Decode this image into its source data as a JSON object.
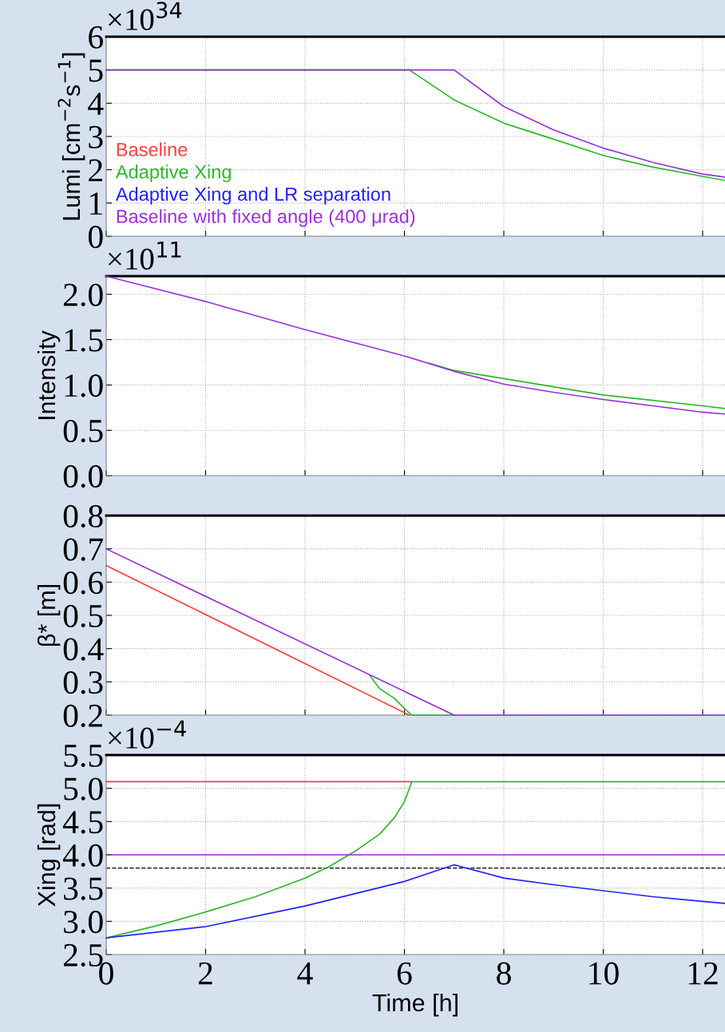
{
  "chart_data": [
    {
      "type": "line",
      "ylabel": "Lumi [cm$^{−2}$s$^{−1}$]",
      "annotations": [
        "×10$^{34}$"
      ],
      "xlim": [
        0,
        12.45
      ],
      "xticks": [
        0,
        2,
        4,
        6,
        8,
        10,
        12
      ],
      "ylim": [
        0,
        6
      ],
      "yticks": [
        0,
        1,
        2,
        3,
        4,
        5,
        6
      ],
      "tick_labels": "y",
      "grid": true,
      "legend": "lower left",
      "series": [
        {
          "name": "Baseline",
          "color": "#ff4040"
        },
        {
          "name": "Adaptive Xing",
          "color": "#2eb82e",
          "x": [
            0,
            6.1,
            7,
            8,
            9,
            10,
            11,
            12,
            12.45
          ],
          "values": [
            5,
            5,
            4.1,
            3.4,
            2.92,
            2.43,
            2.08,
            1.8,
            1.68
          ]
        },
        {
          "name": "Adaptive Xing and LR separation",
          "color": "#2020ff"
        },
        {
          "name": "Baseline with fixed angle (400 μrad)",
          "color": "#9b30d9",
          "x": [
            0,
            7,
            8,
            9,
            10,
            11,
            12,
            12.45
          ],
          "values": [
            5,
            5,
            3.9,
            3.2,
            2.65,
            2.22,
            1.87,
            1.78
          ]
        }
      ]
    },
    {
      "type": "line",
      "ylabel": "Intensity",
      "annotations": [
        "×10$^{11}$"
      ],
      "xlim": [
        0,
        12.45
      ],
      "xticks": [
        0,
        2,
        4,
        6,
        8,
        10,
        12
      ],
      "ylim": [
        0,
        2.2
      ],
      "yticks": [
        {
          "value": 0,
          "label": "0.0"
        },
        0.5,
        {
          "value": 1,
          "label": "1.0"
        },
        1.5,
        {
          "value": 2,
          "label": "2.0"
        }
      ],
      "tick_labels": "y",
      "grid": true,
      "series": [
        {
          "color": "#2eb82e",
          "x": [
            6.5,
            7,
            8,
            9,
            10,
            11,
            12,
            12.45
          ],
          "values": [
            1.24,
            1.16,
            1.07,
            0.98,
            0.89,
            0.83,
            0.77,
            0.74
          ]
        },
        {
          "color": "#9b30d9",
          "x": [
            0,
            2,
            4,
            6,
            7,
            8,
            9,
            10,
            11,
            12,
            12.45
          ],
          "values": [
            2.2,
            1.92,
            1.61,
            1.32,
            1.15,
            1.01,
            0.92,
            0.84,
            0.77,
            0.7,
            0.68
          ]
        }
      ]
    },
    {
      "type": "line",
      "ylabel": "β* [m]",
      "xlim": [
        0,
        12.45
      ],
      "xticks": [
        0,
        2,
        4,
        6,
        8,
        10,
        12
      ],
      "ylim": [
        0.2,
        0.8
      ],
      "yticks": [
        0.2,
        0.3,
        0.4,
        0.5,
        0.6,
        0.7,
        0.8
      ],
      "tick_labels": "y",
      "grid": true,
      "series": [
        {
          "color": "#ff4040",
          "x": [
            0,
            6.1
          ],
          "values": [
            0.65,
            0.2
          ]
        },
        {
          "color": "#2eb82e",
          "x": [
            5.3,
            5.5,
            5.8,
            6.0,
            6.15,
            7
          ],
          "values": [
            0.32,
            0.28,
            0.25,
            0.22,
            0.2,
            0.2
          ]
        },
        {
          "color": "#9b30d9",
          "x": [
            0,
            7,
            12.45
          ],
          "values": [
            0.7,
            0.2,
            0.2
          ]
        }
      ]
    },
    {
      "type": "line",
      "xlabel": "Time [h]",
      "ylabel": "Xing [rad]",
      "annotations": [
        "×10$^{−4}$"
      ],
      "xlim": [
        0,
        12.45
      ],
      "xticks": [
        0,
        2,
        4,
        6,
        8,
        10,
        12
      ],
      "ylim": [
        2.5,
        5.5
      ],
      "yticks": [
        2.5,
        {
          "value": 3,
          "label": "3.0"
        },
        3.5,
        {
          "value": 4,
          "label": "4.0"
        },
        4.5,
        {
          "value": 5,
          "label": "5.0"
        },
        5.5
      ],
      "grid": true,
      "ref_lines": [
        {
          "axis": "y",
          "value": 3.8,
          "color": "#000000",
          "line_style": "dashed"
        }
      ],
      "series": [
        {
          "color": "#ff4040",
          "x": [
            0,
            6.15
          ],
          "values": [
            5.1,
            5.1
          ]
        },
        {
          "color": "#2eb82e",
          "x": [
            0,
            1,
            2,
            3,
            4,
            4.5,
            5,
            5.5,
            5.8,
            6,
            6.15,
            12.45
          ],
          "values": [
            2.75,
            2.93,
            3.14,
            3.37,
            3.65,
            3.83,
            4.05,
            4.31,
            4.56,
            4.8,
            5.1,
            5.1
          ]
        },
        {
          "color": "#2020ff",
          "x": [
            0,
            2,
            4,
            6,
            7,
            8,
            9,
            10,
            11,
            12,
            12.45
          ],
          "values": [
            2.75,
            2.92,
            3.23,
            3.6,
            3.85,
            3.65,
            3.55,
            3.46,
            3.37,
            3.3,
            3.27
          ]
        },
        {
          "color": "#9b30d9",
          "x": [
            0,
            12.45
          ],
          "values": [
            4.0,
            4.0
          ]
        }
      ]
    }
  ]
}
